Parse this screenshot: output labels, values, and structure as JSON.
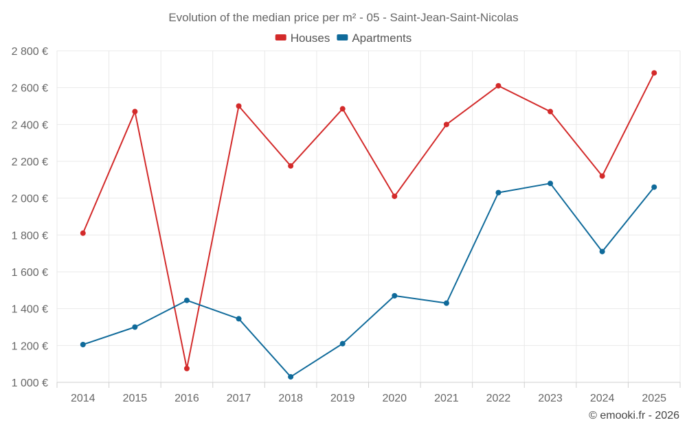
{
  "chart_data": {
    "type": "line",
    "title": "Evolution of the median price per m² - 05 - Saint-Jean-Saint-Nicolas",
    "categories": [
      "2014",
      "2015",
      "2016",
      "2017",
      "2018",
      "2019",
      "2020",
      "2021",
      "2022",
      "2023",
      "2024",
      "2025"
    ],
    "series": [
      {
        "name": "Houses",
        "color": "#d32a2a",
        "values": [
          1810,
          2470,
          1075,
          2500,
          2175,
          2485,
          2010,
          2400,
          2610,
          2470,
          2120,
          2680
        ]
      },
      {
        "name": "Apartments",
        "color": "#0f6a9a",
        "values": [
          1205,
          1300,
          1445,
          1345,
          1030,
          1210,
          1470,
          1430,
          2030,
          2080,
          1710,
          2060
        ]
      }
    ],
    "ylim": [
      1000,
      2800
    ],
    "yticks": [
      1000,
      1200,
      1400,
      1600,
      1800,
      2000,
      2200,
      2400,
      2600,
      2800
    ],
    "ytick_labels": [
      "1 000 €",
      "1 200 €",
      "1 400 €",
      "1 600 €",
      "1 800 €",
      "2 000 €",
      "2 200 €",
      "2 400 €",
      "2 600 €",
      "2 800 €"
    ],
    "xlabel": "",
    "ylabel": "",
    "grid": true,
    "legend_position": "top-center"
  },
  "credit": "© emooki.fr - 2026"
}
